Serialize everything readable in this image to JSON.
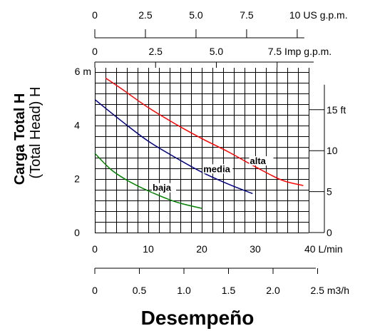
{
  "chart_data": {
    "type": "line",
    "title": "Desempeño",
    "ylabel_bold": "Carga Total H",
    "ylabel_normal": "(Total Head) H",
    "x_unit_lmin": "L/min",
    "xlim_lmin": [
      0,
      40
    ],
    "ylim_m": [
      0,
      6
    ],
    "grid": true,
    "left_ticks": [
      {
        "value": 0,
        "label": "0"
      },
      {
        "value": 2,
        "label": "2"
      },
      {
        "value": 4,
        "label": "4"
      },
      {
        "value": 6,
        "label": "6 m"
      }
    ],
    "right_ticks": [
      {
        "value_ft": 0,
        "label": "0"
      },
      {
        "value_ft": 5,
        "label": "5"
      },
      {
        "value_ft": 10,
        "label": "10"
      },
      {
        "value_ft": 15,
        "label": "15 ft"
      }
    ],
    "bottom_ticks_lmin": [
      {
        "value": 0,
        "label": "0"
      },
      {
        "value": 10,
        "label": "10"
      },
      {
        "value": 20,
        "label": "20"
      },
      {
        "value": 30,
        "label": "30"
      },
      {
        "value": 40,
        "label": "40 L/min"
      }
    ],
    "bottom_ticks_m3h": [
      {
        "value": 0,
        "label": "0"
      },
      {
        "value": 0.5,
        "label": "0.5"
      },
      {
        "value": 1.0,
        "label": "1.0"
      },
      {
        "value": 1.5,
        "label": "1.5"
      },
      {
        "value": 2.0,
        "label": "2.0"
      },
      {
        "value": 2.5,
        "label": "2.5 m3/h"
      }
    ],
    "top_ticks_usgpm": [
      {
        "value": 0,
        "label": "0"
      },
      {
        "value": 2.5,
        "label": "2.5"
      },
      {
        "value": 5.0,
        "label": "5.0"
      },
      {
        "value": 7.5,
        "label": "7.5"
      },
      {
        "value": 10,
        "label": "10 US g.p.m."
      }
    ],
    "top_ticks_impgpm": [
      {
        "value": 0,
        "label": "0"
      },
      {
        "value": 2.5,
        "label": "2.5"
      },
      {
        "value": 5.0,
        "label": "5.0"
      },
      {
        "value": 7.5,
        "label": "7.5 Imp g.p.m."
      }
    ],
    "series": [
      {
        "name": "alta",
        "color": "#ff0000",
        "x": [
          2,
          5,
          10,
          15,
          20,
          25,
          30,
          35,
          39
        ],
        "y": [
          5.75,
          5.35,
          4.65,
          4.05,
          3.5,
          3.0,
          2.45,
          1.95,
          1.75
        ]
      },
      {
        "name": "media",
        "color": "#000080",
        "x": [
          0,
          5,
          10,
          15,
          20,
          25,
          29.5
        ],
        "y": [
          4.95,
          4.15,
          3.4,
          2.8,
          2.25,
          1.8,
          1.45
        ]
      },
      {
        "name": "baja",
        "color": "#008000",
        "x": [
          0,
          3,
          6,
          10,
          15,
          20
        ],
        "y": [
          2.95,
          2.35,
          1.95,
          1.55,
          1.15,
          0.9
        ]
      }
    ]
  }
}
